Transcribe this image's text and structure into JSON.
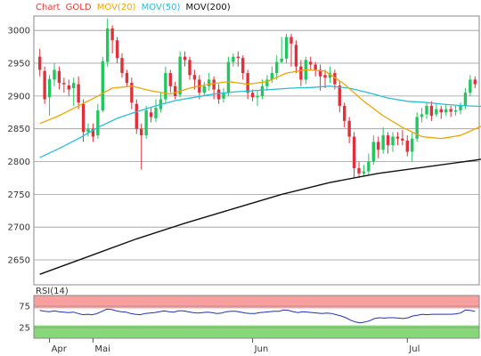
{
  "legend": {
    "chart": "Chart",
    "symbol": "GOLD",
    "ma20": "MOV(20)",
    "ma50": "MOV(50)",
    "ma200": "MOV(200)"
  },
  "rsi_label": "RSI(14)",
  "colors": {
    "up": "#22c55e",
    "down": "#e0303a",
    "ma20": "#f0a500",
    "ma50": "#25c0d8",
    "ma200": "#111111",
    "rsi_line": "#2030c0",
    "overbought_band": "#f8a0a0",
    "oversold_band": "#88d67a",
    "grid": "#999999",
    "legend_red": "#e23b3b"
  },
  "chart_data": [
    {
      "type": "candlestick",
      "title": "GOLD",
      "ylim": [
        2612,
        3022
      ],
      "y_ticks": [
        2650,
        2700,
        2750,
        2800,
        2850,
        2900,
        2950,
        3000
      ],
      "x_labels": [
        {
          "label": "Apr",
          "index": 2
        },
        {
          "label": "Mai",
          "index": 11
        },
        {
          "label": "Jun",
          "index": 44
        },
        {
          "label": "Jul",
          "index": 76
        }
      ],
      "grid": true,
      "candles": [
        [
          2960,
          2940,
          2972,
          2930
        ],
        [
          2938,
          2895,
          2945,
          2888
        ],
        [
          2898,
          2926,
          2932,
          2870
        ],
        [
          2925,
          2940,
          2950,
          2915
        ],
        [
          2938,
          2920,
          2945,
          2910
        ],
        [
          2920,
          2918,
          2928,
          2905
        ],
        [
          2916,
          2910,
          2925,
          2900
        ],
        [
          2912,
          2920,
          2928,
          2885
        ],
        [
          2918,
          2890,
          2930,
          2880
        ],
        [
          2888,
          2845,
          2895,
          2830
        ],
        [
          2845,
          2850,
          2858,
          2838
        ],
        [
          2850,
          2838,
          2858,
          2830
        ],
        [
          2840,
          2878,
          2888,
          2835
        ],
        [
          2878,
          2953,
          2960,
          2875
        ],
        [
          2952,
          3003,
          3018,
          2945
        ],
        [
          3003,
          2985,
          3008,
          2965
        ],
        [
          2985,
          2958,
          2990,
          2950
        ],
        [
          2958,
          2935,
          2965,
          2928
        ],
        [
          2935,
          2920,
          2940,
          2915
        ],
        [
          2920,
          2890,
          2928,
          2880
        ],
        [
          2888,
          2850,
          2895,
          2842
        ],
        [
          2850,
          2840,
          2858,
          2788
        ],
        [
          2840,
          2878,
          2885,
          2835
        ],
        [
          2875,
          2868,
          2882,
          2860
        ],
        [
          2866,
          2882,
          2895,
          2860
        ],
        [
          2880,
          2895,
          2905,
          2875
        ],
        [
          2895,
          2935,
          2945,
          2890
        ],
        [
          2935,
          2915,
          2940,
          2905
        ],
        [
          2915,
          2900,
          2922,
          2895
        ],
        [
          2902,
          2960,
          2968,
          2898
        ],
        [
          2960,
          2955,
          2968,
          2945
        ],
        [
          2955,
          2932,
          2960,
          2925
        ],
        [
          2932,
          2925,
          2940,
          2910
        ],
        [
          2925,
          2905,
          2932,
          2895
        ],
        [
          2905,
          2915,
          2922,
          2900
        ],
        [
          2915,
          2925,
          2935,
          2908
        ],
        [
          2925,
          2910,
          2930,
          2895
        ],
        [
          2910,
          2895,
          2918,
          2888
        ],
        [
          2896,
          2905,
          2912,
          2890
        ],
        [
          2905,
          2952,
          2960,
          2900
        ],
        [
          2952,
          2960,
          2965,
          2945
        ],
        [
          2960,
          2958,
          2968,
          2945
        ],
        [
          2958,
          2935,
          2962,
          2925
        ],
        [
          2935,
          2905,
          2940,
          2895
        ],
        [
          2905,
          2898,
          2910,
          2892
        ],
        [
          2898,
          2900,
          2908,
          2885
        ],
        [
          2900,
          2915,
          2925,
          2895
        ],
        [
          2915,
          2925,
          2932,
          2908
        ],
        [
          2925,
          2935,
          2945,
          2920
        ],
        [
          2935,
          2952,
          2962,
          2925
        ],
        [
          2952,
          2957,
          2990,
          2950
        ],
        [
          2957,
          2990,
          2995,
          2950
        ],
        [
          2990,
          2980,
          2995,
          2945
        ],
        [
          2978,
          2945,
          2985,
          2935
        ],
        [
          2945,
          2925,
          2955,
          2915
        ],
        [
          2925,
          2955,
          2960,
          2918
        ],
        [
          2952,
          2948,
          2960,
          2940
        ],
        [
          2948,
          2940,
          2952,
          2930
        ],
        [
          2940,
          2930,
          2948,
          2908
        ],
        [
          2932,
          2928,
          2940,
          2912
        ],
        [
          2928,
          2935,
          2945,
          2920
        ],
        [
          2935,
          2918,
          2940,
          2910
        ],
        [
          2916,
          2885,
          2922,
          2875
        ],
        [
          2885,
          2862,
          2890,
          2852
        ],
        [
          2862,
          2838,
          2868,
          2828
        ],
        [
          2838,
          2790,
          2845,
          2775
        ],
        [
          2790,
          2782,
          2800,
          2775
        ],
        [
          2782,
          2785,
          2795,
          2778
        ],
        [
          2785,
          2800,
          2812,
          2780
        ],
        [
          2800,
          2830,
          2840,
          2795
        ],
        [
          2830,
          2818,
          2838,
          2805
        ],
        [
          2818,
          2840,
          2852,
          2812
        ],
        [
          2840,
          2825,
          2845,
          2812
        ],
        [
          2825,
          2838,
          2845,
          2815
        ],
        [
          2838,
          2835,
          2845,
          2825
        ],
        [
          2835,
          2832,
          2848,
          2825
        ],
        [
          2832,
          2815,
          2840,
          2808
        ],
        [
          2815,
          2835,
          2845,
          2800
        ],
        [
          2835,
          2868,
          2875,
          2830
        ],
        [
          2868,
          2872,
          2882,
          2860
        ],
        [
          2872,
          2885,
          2890,
          2865
        ],
        [
          2885,
          2870,
          2892,
          2862
        ],
        [
          2872,
          2880,
          2888,
          2868
        ],
        [
          2880,
          2875,
          2885,
          2865
        ],
        [
          2875,
          2880,
          2888,
          2870
        ],
        [
          2880,
          2876,
          2885,
          2868
        ],
        [
          2876,
          2878,
          2885,
          2870
        ],
        [
          2878,
          2885,
          2890,
          2872
        ],
        [
          2885,
          2905,
          2912,
          2880
        ],
        [
          2905,
          2925,
          2932,
          2900
        ],
        [
          2925,
          2918,
          2930,
          2912
        ]
      ],
      "ma20": [
        [
          0,
          2858
        ],
        [
          4,
          2870
        ],
        [
          8,
          2885
        ],
        [
          12,
          2900
        ],
        [
          15,
          2912
        ],
        [
          19,
          2915
        ],
        [
          23,
          2908
        ],
        [
          27,
          2903
        ],
        [
          31,
          2912
        ],
        [
          35,
          2918
        ],
        [
          39,
          2922
        ],
        [
          43,
          2918
        ],
        [
          47,
          2922
        ],
        [
          51,
          2935
        ],
        [
          55,
          2940
        ],
        [
          59,
          2938
        ],
        [
          63,
          2918
        ],
        [
          67,
          2892
        ],
        [
          71,
          2870
        ],
        [
          75,
          2852
        ],
        [
          79,
          2838
        ],
        [
          83,
          2835
        ],
        [
          87,
          2840
        ],
        [
          91,
          2853
        ],
        [
          95,
          2866
        ]
      ],
      "ma50": [
        [
          0,
          2806
        ],
        [
          4,
          2820
        ],
        [
          8,
          2835
        ],
        [
          12,
          2852
        ],
        [
          16,
          2866
        ],
        [
          20,
          2876
        ],
        [
          24,
          2885
        ],
        [
          28,
          2893
        ],
        [
          32,
          2898
        ],
        [
          36,
          2903
        ],
        [
          40,
          2906
        ],
        [
          44,
          2908
        ],
        [
          48,
          2910
        ],
        [
          52,
          2912
        ],
        [
          56,
          2913
        ],
        [
          60,
          2915
        ],
        [
          64,
          2912
        ],
        [
          68,
          2905
        ],
        [
          72,
          2897
        ],
        [
          76,
          2892
        ],
        [
          80,
          2890
        ],
        [
          84,
          2887
        ],
        [
          88,
          2885
        ],
        [
          92,
          2884
        ],
        [
          95,
          2883
        ]
      ],
      "ma200": [
        [
          0,
          2628
        ],
        [
          10,
          2655
        ],
        [
          20,
          2682
        ],
        [
          30,
          2706
        ],
        [
          40,
          2728
        ],
        [
          50,
          2750
        ],
        [
          60,
          2768
        ],
        [
          70,
          2782
        ],
        [
          80,
          2792
        ],
        [
          90,
          2802
        ],
        [
          95,
          2808
        ]
      ]
    },
    {
      "type": "line",
      "title": "RSI(14)",
      "ylim": [
        0,
        100
      ],
      "y_ticks": [
        25,
        75
      ],
      "bands": [
        [
          70,
          100
        ],
        [
          0,
          30
        ]
      ],
      "series": [
        {
          "values": [
            65,
            63,
            62,
            64,
            62,
            61,
            60,
            61,
            58,
            55,
            56,
            55,
            58,
            63,
            68,
            67,
            64,
            62,
            61,
            58,
            56,
            55,
            58,
            59,
            60,
            62,
            64,
            62,
            61,
            64,
            64,
            62,
            60,
            59,
            60,
            61,
            60,
            58,
            59,
            62,
            63,
            63,
            61,
            59,
            58,
            58,
            60,
            61,
            62,
            63,
            63,
            66,
            65,
            62,
            60,
            62,
            61,
            60,
            59,
            58,
            59,
            58,
            55,
            52,
            48,
            42,
            38,
            36,
            38,
            41,
            46,
            48,
            47,
            48,
            48,
            47,
            46,
            48,
            52,
            54,
            56,
            55,
            56,
            56,
            56,
            56,
            56,
            57,
            59,
            66,
            65,
            63
          ]
        }
      ]
    }
  ]
}
